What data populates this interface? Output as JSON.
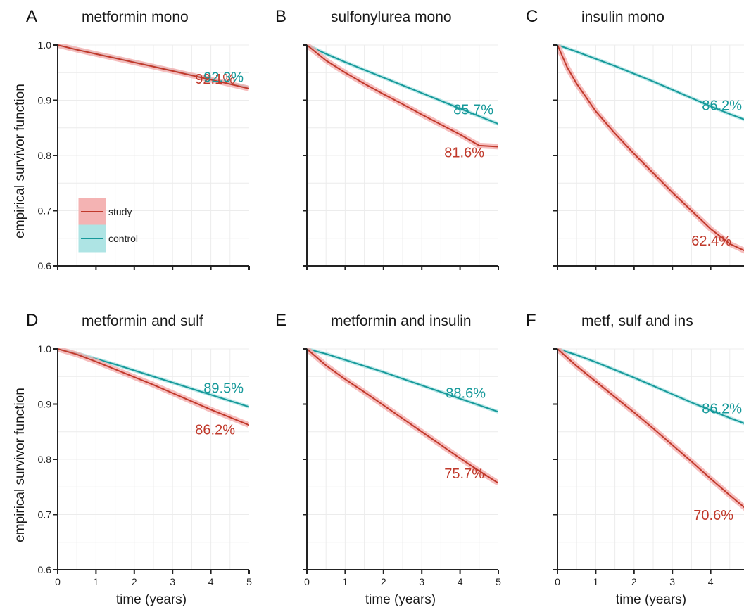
{
  "colors": {
    "study": "#c0392b",
    "study_band": "#f4b3b3",
    "control": "#16999a",
    "control_band": "#aee4e4",
    "grid": "#ececec",
    "axis": "#222222"
  },
  "axes": {
    "ylabel": "empirical survivor function",
    "xlabel": "time (years)",
    "xlim": [
      0,
      5
    ],
    "ylim": [
      0.6,
      1.0
    ],
    "x_ticks": [
      "0",
      "1",
      "2",
      "3",
      "4",
      "5"
    ],
    "y_ticks": [
      "0.6",
      "0.7",
      "0.8",
      "0.9",
      "1.0"
    ],
    "x_tick_values": [
      0,
      1,
      2,
      3,
      4,
      5
    ],
    "y_tick_values": [
      0.6,
      0.7,
      0.8,
      0.9,
      1.0
    ]
  },
  "legend": {
    "placement": "inside-bottom-left",
    "entries": [
      {
        "series": "study",
        "label": "study"
      },
      {
        "series": "control",
        "label": "control"
      }
    ]
  },
  "chart_data": [
    {
      "type": "line",
      "panel": "A",
      "title": "metformin mono",
      "xlim": [
        0,
        5
      ],
      "ylim": [
        0.6,
        1.0
      ],
      "grid": true,
      "series": [
        {
          "name": "study",
          "x": [
            0,
            0.5,
            1,
            1.5,
            2,
            2.5,
            3,
            3.5,
            4,
            4.5,
            5
          ],
          "values": [
            1.0,
            0.9915,
            0.9838,
            0.9762,
            0.9685,
            0.9608,
            0.953,
            0.945,
            0.9372,
            0.9292,
            0.921
          ],
          "label": "92.1%"
        },
        {
          "name": "control",
          "x": [
            0,
            0.5,
            1,
            1.5,
            2,
            2.5,
            3,
            3.5,
            4,
            4.5,
            5
          ],
          "values": [
            1.0,
            0.9918,
            0.9842,
            0.9766,
            0.969,
            0.9614,
            0.9538,
            0.9461,
            0.9385,
            0.9308,
            0.923
          ],
          "label": "92.3%"
        }
      ]
    },
    {
      "type": "line",
      "panel": "B",
      "title": "sulfonylurea mono",
      "xlim": [
        0,
        5
      ],
      "ylim": [
        0.6,
        1.0
      ],
      "grid": true,
      "series": [
        {
          "name": "study",
          "x": [
            0,
            0.5,
            1,
            1.5,
            2,
            2.5,
            3,
            3.5,
            4,
            4.5,
            5
          ],
          "values": [
            1.0,
            0.972,
            0.95,
            0.93,
            0.911,
            0.893,
            0.874,
            0.856,
            0.838,
            0.818,
            0.816
          ],
          "label": "81.6%"
        },
        {
          "name": "control",
          "x": [
            0,
            0.5,
            1,
            1.5,
            2,
            2.5,
            3,
            3.5,
            4,
            4.5,
            5
          ],
          "values": [
            1.0,
            0.984,
            0.969,
            0.955,
            0.941,
            0.927,
            0.913,
            0.899,
            0.885,
            0.871,
            0.857
          ],
          "label": "85.7%"
        }
      ]
    },
    {
      "type": "line",
      "panel": "C",
      "title": "insulin mono",
      "xlim": [
        0,
        5
      ],
      "ylim": [
        0.6,
        1.0
      ],
      "grid": true,
      "series": [
        {
          "name": "study",
          "x": [
            0,
            0.25,
            0.5,
            1,
            1.5,
            2,
            2.5,
            3,
            3.5,
            4,
            4.5,
            5
          ],
          "values": [
            1.0,
            0.96,
            0.93,
            0.88,
            0.84,
            0.803,
            0.768,
            0.733,
            0.7,
            0.667,
            0.64,
            0.624
          ],
          "label": "62.4%"
        },
        {
          "name": "control",
          "x": [
            0,
            0.5,
            1,
            1.5,
            2,
            2.5,
            3,
            3.5,
            4,
            4.5,
            5
          ],
          "values": [
            1.0,
            0.988,
            0.975,
            0.962,
            0.948,
            0.934,
            0.919,
            0.904,
            0.889,
            0.875,
            0.862
          ],
          "label": "86.2%"
        }
      ]
    },
    {
      "type": "line",
      "panel": "D",
      "title": "metformin and sulf",
      "xlim": [
        0,
        5
      ],
      "ylim": [
        0.6,
        1.0
      ],
      "grid": true,
      "series": [
        {
          "name": "study",
          "x": [
            0,
            0.5,
            1,
            1.5,
            2,
            2.5,
            3,
            3.5,
            4,
            4.5,
            5
          ],
          "values": [
            1.0,
            0.99,
            0.977,
            0.963,
            0.949,
            0.935,
            0.92,
            0.905,
            0.89,
            0.876,
            0.862
          ],
          "label": "86.2%"
        },
        {
          "name": "control",
          "x": [
            0,
            0.5,
            1,
            1.5,
            2,
            2.5,
            3,
            3.5,
            4,
            4.5,
            5
          ],
          "values": [
            1.0,
            0.992,
            0.982,
            0.972,
            0.961,
            0.95,
            0.939,
            0.928,
            0.917,
            0.906,
            0.895
          ],
          "label": "89.5%"
        }
      ]
    },
    {
      "type": "line",
      "panel": "E",
      "title": "metformin and insulin",
      "xlim": [
        0,
        5
      ],
      "ylim": [
        0.6,
        1.0
      ],
      "grid": true,
      "series": [
        {
          "name": "study",
          "x": [
            0,
            0.5,
            1,
            1.5,
            2,
            2.5,
            3,
            3.5,
            4,
            4.5,
            5
          ],
          "values": [
            1.0,
            0.97,
            0.945,
            0.922,
            0.898,
            0.874,
            0.85,
            0.826,
            0.802,
            0.779,
            0.757
          ],
          "label": "75.7%"
        },
        {
          "name": "control",
          "x": [
            0,
            0.5,
            1,
            1.5,
            2,
            2.5,
            3,
            3.5,
            4,
            4.5,
            5
          ],
          "values": [
            1.0,
            0.991,
            0.98,
            0.969,
            0.958,
            0.946,
            0.934,
            0.922,
            0.91,
            0.898,
            0.886
          ],
          "label": "88.6%"
        }
      ]
    },
    {
      "type": "line",
      "panel": "F",
      "title": "metf, sulf and ins",
      "xlim": [
        0,
        5
      ],
      "ylim": [
        0.6,
        1.0
      ],
      "grid": true,
      "series": [
        {
          "name": "study",
          "x": [
            0,
            0.5,
            1,
            1.5,
            2,
            2.5,
            3,
            3.5,
            4,
            4.5,
            5
          ],
          "values": [
            1.0,
            0.969,
            0.941,
            0.913,
            0.885,
            0.856,
            0.826,
            0.796,
            0.765,
            0.735,
            0.706
          ],
          "label": "70.6%"
        },
        {
          "name": "control",
          "x": [
            0,
            0.5,
            1,
            1.5,
            2,
            2.5,
            3,
            3.5,
            4,
            4.5,
            5
          ],
          "values": [
            1.0,
            0.989,
            0.976,
            0.962,
            0.948,
            0.933,
            0.918,
            0.903,
            0.889,
            0.875,
            0.862
          ],
          "label": "86.2%"
        }
      ]
    }
  ]
}
